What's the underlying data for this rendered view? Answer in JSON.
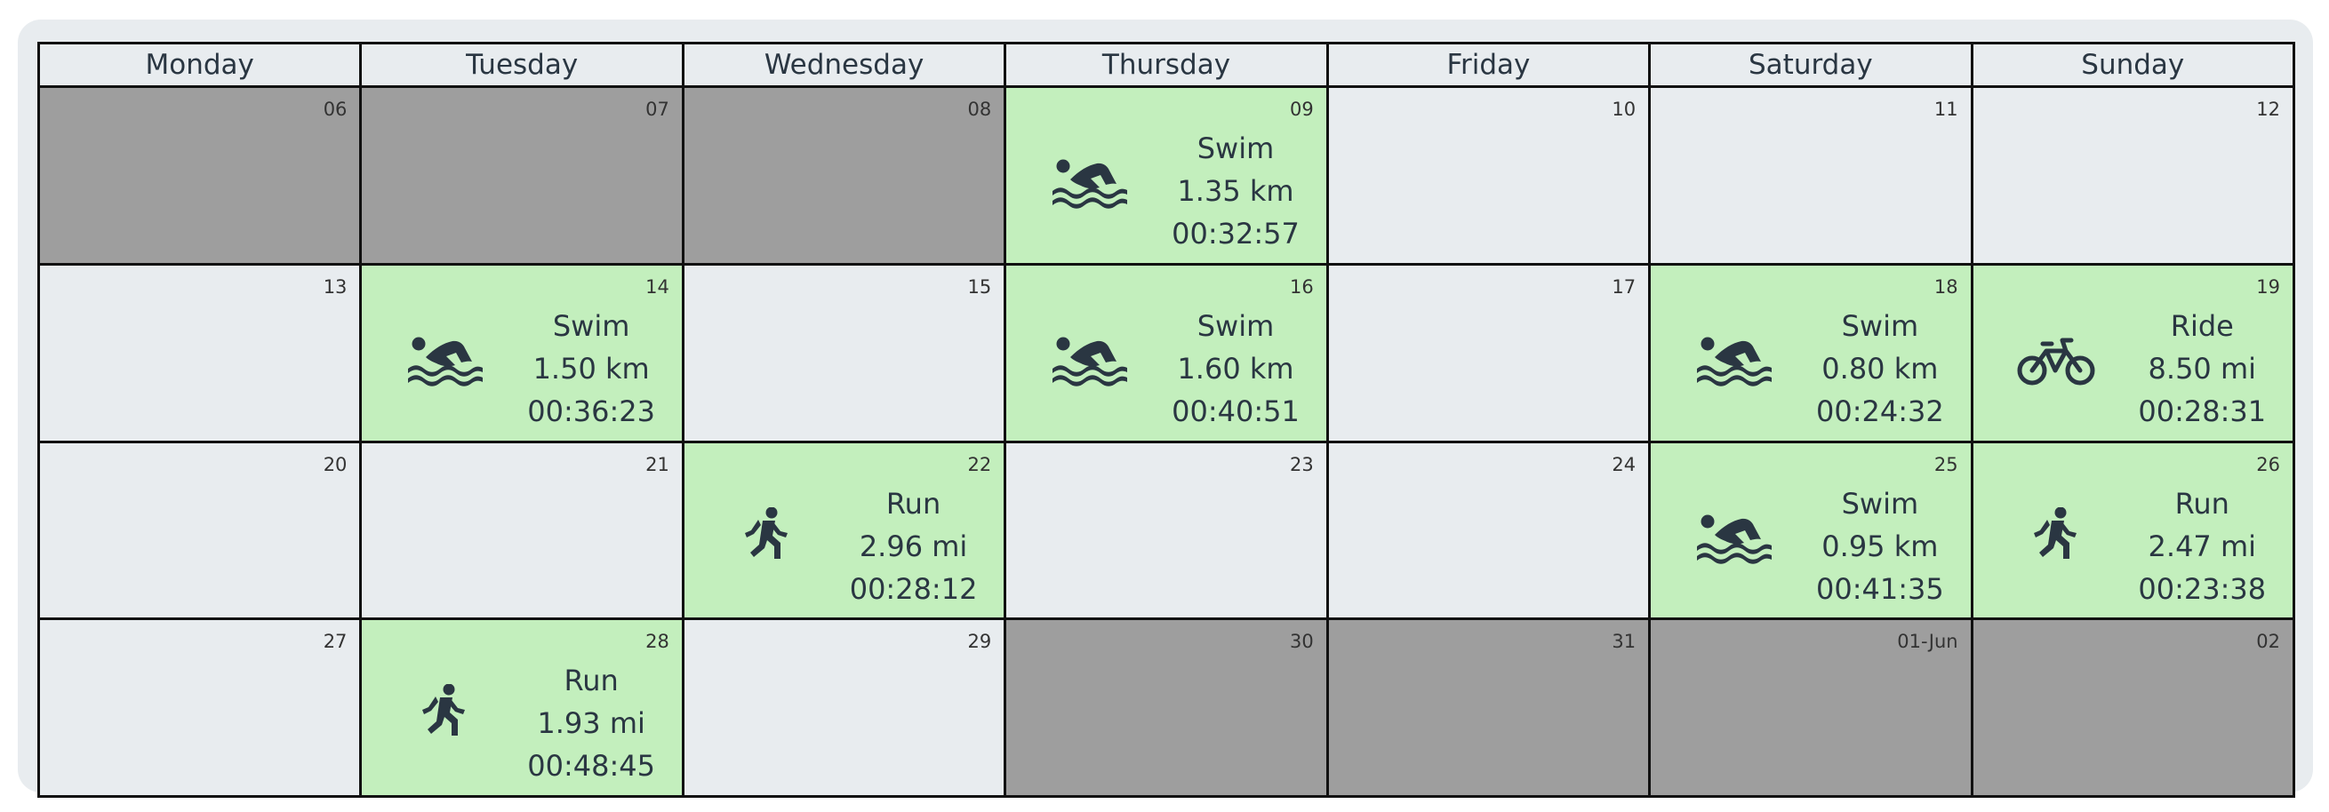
{
  "days_of_week": [
    "Monday",
    "Tuesday",
    "Wednesday",
    "Thursday",
    "Friday",
    "Saturday",
    "Sunday"
  ],
  "weeks": [
    [
      {
        "day": "06",
        "state": "out"
      },
      {
        "day": "07",
        "state": "out"
      },
      {
        "day": "08",
        "state": "out"
      },
      {
        "day": "09",
        "state": "act",
        "activity": {
          "type": "Swim",
          "icon": "swim-icon",
          "distance": "1.35 km",
          "duration": "00:32:57"
        }
      },
      {
        "day": "10",
        "state": "in"
      },
      {
        "day": "11",
        "state": "in"
      },
      {
        "day": "12",
        "state": "in"
      }
    ],
    [
      {
        "day": "13",
        "state": "in"
      },
      {
        "day": "14",
        "state": "act",
        "activity": {
          "type": "Swim",
          "icon": "swim-icon",
          "distance": "1.50 km",
          "duration": "00:36:23"
        }
      },
      {
        "day": "15",
        "state": "in"
      },
      {
        "day": "16",
        "state": "act",
        "activity": {
          "type": "Swim",
          "icon": "swim-icon",
          "distance": "1.60 km",
          "duration": "00:40:51"
        }
      },
      {
        "day": "17",
        "state": "in"
      },
      {
        "day": "18",
        "state": "act",
        "activity": {
          "type": "Swim",
          "icon": "swim-icon",
          "distance": "0.80 km",
          "duration": "00:24:32"
        }
      },
      {
        "day": "19",
        "state": "act",
        "activity": {
          "type": "Ride",
          "icon": "bike-icon",
          "distance": "8.50 mi",
          "duration": "00:28:31"
        }
      }
    ],
    [
      {
        "day": "20",
        "state": "in"
      },
      {
        "day": "21",
        "state": "in"
      },
      {
        "day": "22",
        "state": "act",
        "activity": {
          "type": "Run",
          "icon": "run-icon",
          "distance": "2.96 mi",
          "duration": "00:28:12"
        }
      },
      {
        "day": "23",
        "state": "in"
      },
      {
        "day": "24",
        "state": "in"
      },
      {
        "day": "25",
        "state": "act",
        "activity": {
          "type": "Swim",
          "icon": "swim-icon",
          "distance": "0.95 km",
          "duration": "00:41:35"
        }
      },
      {
        "day": "26",
        "state": "act",
        "activity": {
          "type": "Run",
          "icon": "run-icon",
          "distance": "2.47 mi",
          "duration": "00:23:38"
        }
      }
    ],
    [
      {
        "day": "27",
        "state": "in"
      },
      {
        "day": "28",
        "state": "act",
        "activity": {
          "type": "Run",
          "icon": "run-icon",
          "distance": "1.93 mi",
          "duration": "00:48:45"
        }
      },
      {
        "day": "29",
        "state": "in"
      },
      {
        "day": "30",
        "state": "out"
      },
      {
        "day": "31",
        "state": "out"
      },
      {
        "day": "01-Jun",
        "state": "out"
      },
      {
        "day": "02",
        "state": "out"
      }
    ]
  ],
  "colors": {
    "activity_bg": "#c3efbd",
    "out_of_month_bg": "#9e9e9e",
    "in_month_bg": "#e8ecef",
    "text": "#2a3642"
  }
}
